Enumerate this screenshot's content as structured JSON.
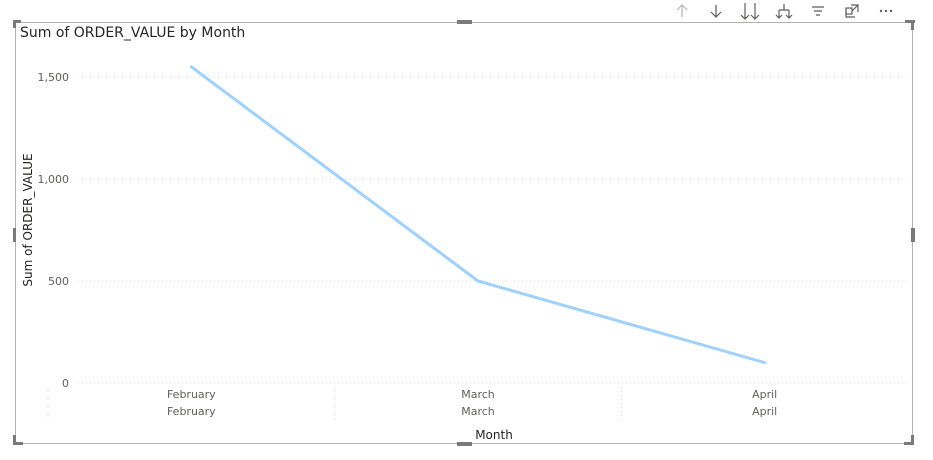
{
  "toolbar": {
    "icons": [
      "drill-up-icon",
      "drill-down-icon",
      "expand-all-down-icon",
      "expand-hierarchy-icon",
      "filter-icon",
      "focus-mode-icon",
      "more-options-icon"
    ]
  },
  "colors": {
    "line": "#a0d1fa",
    "grid": "#d9d9d9",
    "axis_text": "#605e5c",
    "frame": "#b3b0ad",
    "icon": "#605e5c"
  },
  "chart_data": {
    "type": "line",
    "title": "Sum of ORDER_VALUE by Month",
    "xlabel": "Month",
    "ylabel": "Sum of ORDER_VALUE",
    "categories": [
      "February",
      "March",
      "April"
    ],
    "category_hierarchy": [
      "February",
      "March",
      "April"
    ],
    "series": [
      {
        "values": [
          1550,
          500,
          100
        ]
      }
    ],
    "y_ticks": [
      0,
      500,
      1000,
      1500
    ],
    "y_tick_labels": [
      "0",
      "500",
      "1,000",
      "1,500"
    ],
    "ylim": [
      0,
      1550
    ],
    "grid": true,
    "legend": "none"
  }
}
